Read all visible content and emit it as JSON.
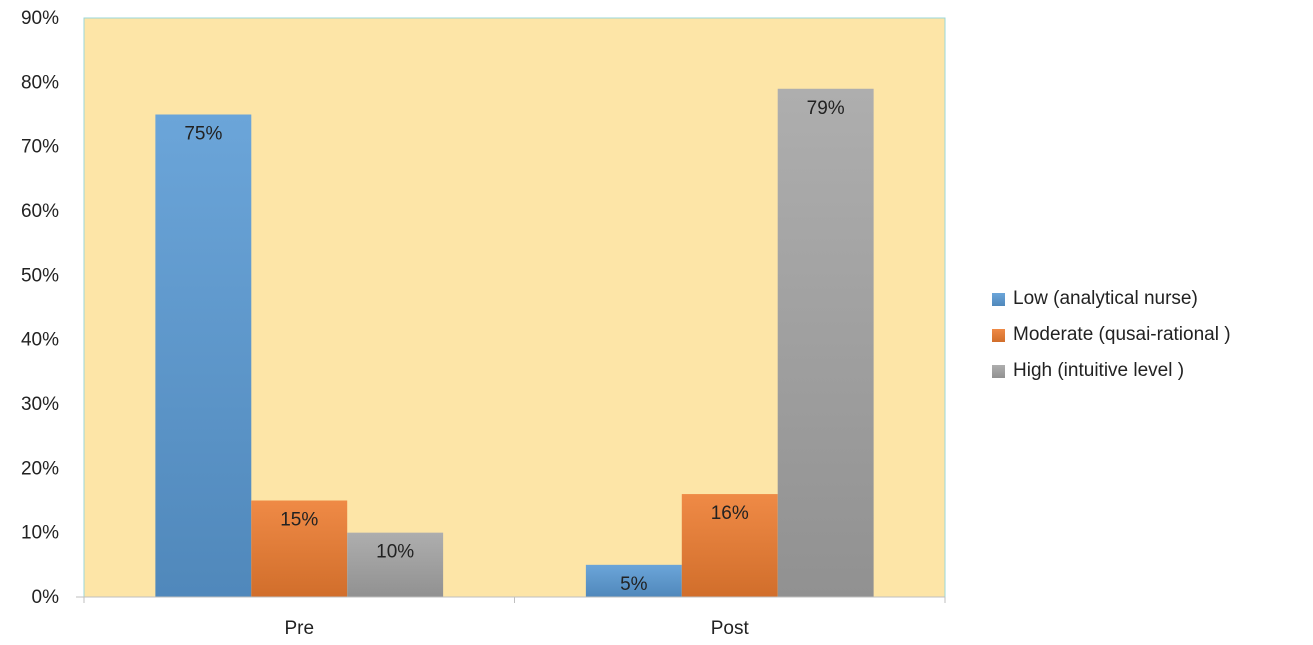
{
  "chart_data": {
    "type": "bar",
    "categories": [
      "Pre",
      "Post"
    ],
    "series": [
      {
        "name": "Low (analytical nurse)",
        "values": [
          75,
          5
        ],
        "labels": [
          "75%",
          "5%"
        ],
        "color": "#5b9bd5"
      },
      {
        "name": "Moderate (qusai-rational )",
        "values": [
          15,
          16
        ],
        "labels": [
          "15%",
          "16%"
        ],
        "color": "#ed7d31"
      },
      {
        "name": "High (intuitive level )",
        "values": [
          10,
          79
        ],
        "labels": [
          "10%",
          "79%"
        ],
        "color": "#a5a5a5"
      }
    ],
    "ylim": [
      0,
      90
    ],
    "yticks": [
      "0%",
      "10%",
      "20%",
      "30%",
      "40%",
      "50%",
      "60%",
      "70%",
      "80%",
      "90%"
    ],
    "grid": false,
    "legend_position": "right",
    "plot_background": "#fde5a7",
    "plot_border_color": "#9ad7d9"
  }
}
